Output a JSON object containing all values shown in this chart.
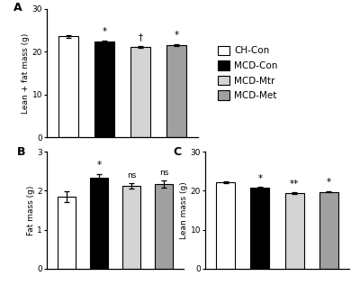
{
  "panel_A": {
    "values": [
      23.5,
      22.3,
      21.0,
      21.5
    ],
    "errors": [
      0.3,
      0.3,
      0.2,
      0.2
    ],
    "ylabel": "Lean + fat mass (g)",
    "ylim": [
      0,
      30
    ],
    "yticks": [
      0,
      10,
      20,
      30
    ],
    "label": "A",
    "annotations": [
      "",
      "*",
      "†",
      "*"
    ]
  },
  "panel_B": {
    "values": [
      1.85,
      2.33,
      2.12,
      2.17
    ],
    "errors": [
      0.14,
      0.1,
      0.07,
      0.09
    ],
    "ylabel": "Fat mass (g)",
    "ylim": [
      0,
      3
    ],
    "yticks": [
      0,
      1,
      2,
      3
    ],
    "label": "B",
    "annotations": [
      "",
      "*",
      "ns",
      "ns"
    ]
  },
  "panel_C": {
    "values": [
      22.1,
      20.7,
      19.3,
      19.7
    ],
    "errors": [
      0.25,
      0.25,
      0.2,
      0.2
    ],
    "ylabel": "Lean mass (g)",
    "ylim": [
      0,
      30
    ],
    "yticks": [
      0,
      10,
      20,
      30
    ],
    "label": "C",
    "annotations": [
      "",
      "*",
      "**",
      "*"
    ]
  },
  "bar_colors": [
    "white",
    "black",
    "#d4d4d4",
    "#a0a0a0"
  ],
  "bar_edgecolor": "black",
  "legend_labels": [
    "CH-Con",
    "MCD-Con",
    "MCD-Mtr",
    "MCD-Met"
  ],
  "legend_colors": [
    "white",
    "black",
    "#d4d4d4",
    "#a0a0a0"
  ],
  "background_color": "white",
  "bar_width": 0.55
}
